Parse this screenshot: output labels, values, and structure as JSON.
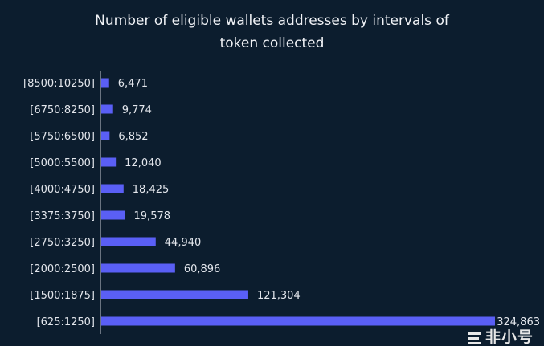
{
  "chart_data": {
    "type": "bar",
    "orientation": "horizontal",
    "title_lines": [
      "Number of eligible wallets addresses by intervals of",
      "token collected"
    ],
    "categories": [
      "[8500:10250]",
      "[6750:8250]",
      "[5750:6500]",
      "[5000:5500]",
      "[4000:4750]",
      "[3375:3750]",
      "[2750:3250]",
      "[2000:2500]",
      "[1500:1875]",
      "[625:1250]"
    ],
    "values": [
      6471,
      9774,
      6852,
      12040,
      18425,
      19578,
      44940,
      60896,
      121304,
      324863
    ],
    "labels": [
      "6,471",
      "9,774",
      "6,852",
      "12,040",
      "18,425",
      "19,578",
      "44,940",
      "60,896",
      "121,304",
      "324,863"
    ],
    "xlabel": "",
    "ylabel": "",
    "grid": false,
    "bar_color": "#5a5ff5",
    "background": "#0c1d2e"
  },
  "watermark": "非小号"
}
